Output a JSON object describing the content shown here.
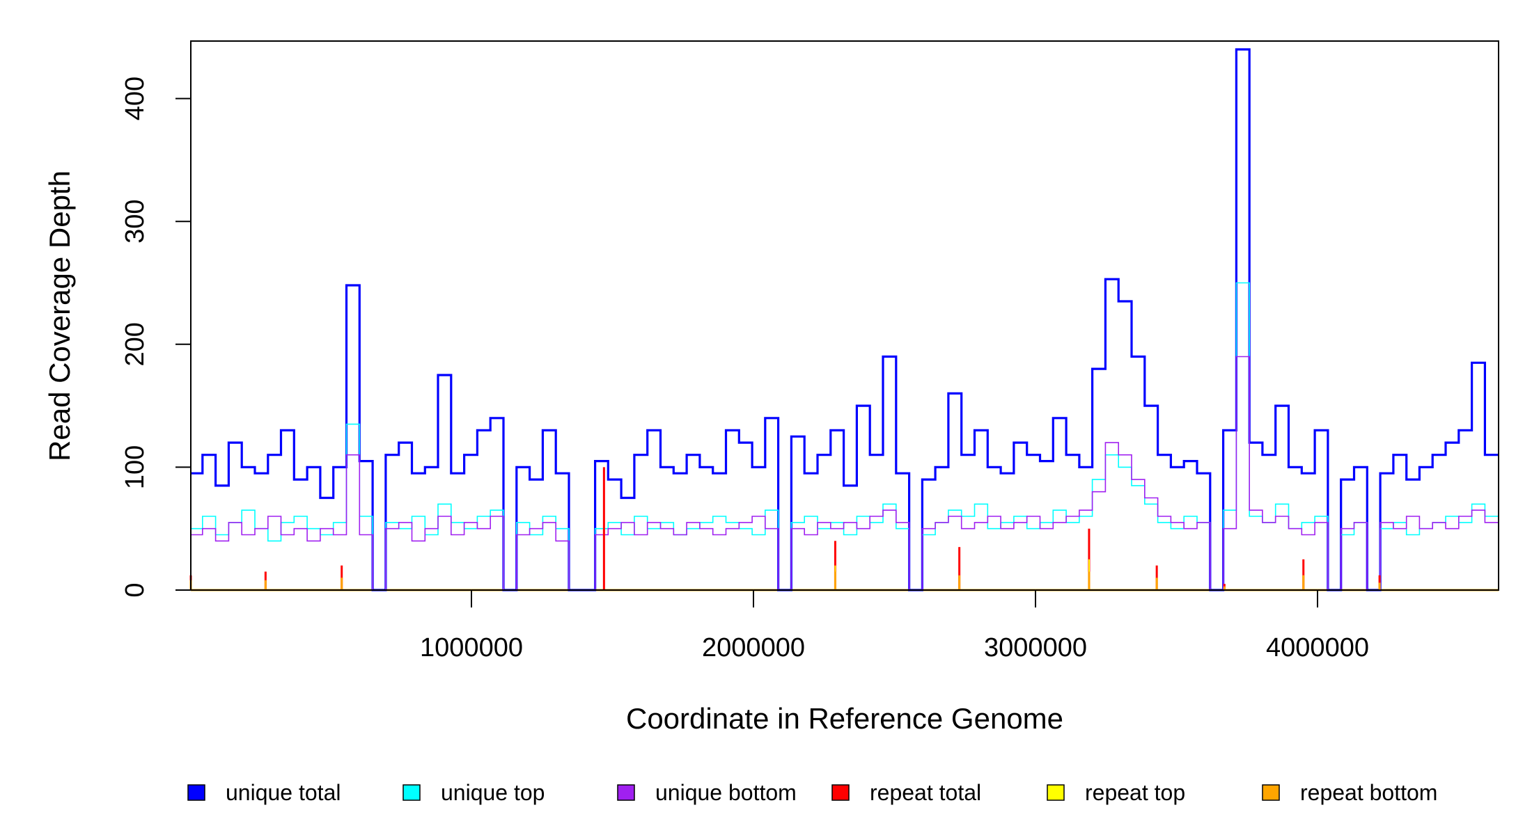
{
  "chart_data": {
    "type": "line",
    "title": "",
    "xlabel": "Coordinate in Reference Genome",
    "ylabel": "Read Coverage Depth",
    "xlim": [
      0,
      4640000
    ],
    "ylim": [
      0,
      445
    ],
    "grid": false,
    "legend_placement": "bottom",
    "bin_size": 46400,
    "x_ticks": [
      {
        "value": 1000000,
        "label": "1000000"
      },
      {
        "value": 2000000,
        "label": "2000000"
      },
      {
        "value": 3000000,
        "label": "3000000"
      },
      {
        "value": 4000000,
        "label": "4000000"
      }
    ],
    "y_ticks": [
      {
        "value": 0,
        "label": "0"
      },
      {
        "value": 100,
        "label": "100"
      },
      {
        "value": 200,
        "label": "200"
      },
      {
        "value": 300,
        "label": "300"
      },
      {
        "value": 400,
        "label": "400"
      }
    ],
    "series": [
      {
        "name": "unique total",
        "color": "#0000ff",
        "width": 3.2,
        "values": [
          95,
          110,
          85,
          120,
          100,
          95,
          110,
          130,
          90,
          100,
          75,
          100,
          248,
          105,
          0,
          110,
          120,
          95,
          100,
          175,
          95,
          110,
          130,
          140,
          0,
          100,
          90,
          130,
          95,
          0,
          0,
          105,
          90,
          75,
          110,
          130,
          100,
          95,
          110,
          100,
          95,
          130,
          120,
          100,
          140,
          0,
          125,
          95,
          110,
          130,
          85,
          150,
          110,
          190,
          95,
          0,
          90,
          100,
          160,
          110,
          130,
          100,
          95,
          120,
          110,
          105,
          140,
          110,
          100,
          180,
          253,
          235,
          190,
          150,
          110,
          100,
          105,
          95,
          0,
          130,
          440,
          120,
          110,
          150,
          100,
          95,
          130,
          0,
          90,
          100,
          0,
          95,
          110,
          90,
          100,
          110,
          120,
          130,
          185,
          110
        ]
      },
      {
        "name": "unique top",
        "color": "#00ffff",
        "width": 1.6,
        "values": [
          50,
          60,
          45,
          55,
          65,
          50,
          40,
          55,
          60,
          50,
          45,
          55,
          135,
          60,
          0,
          55,
          50,
          60,
          45,
          70,
          55,
          50,
          60,
          65,
          0,
          55,
          45,
          60,
          50,
          0,
          0,
          50,
          55,
          45,
          60,
          50,
          55,
          45,
          50,
          55,
          60,
          55,
          50,
          45,
          65,
          0,
          55,
          60,
          50,
          55,
          45,
          60,
          55,
          70,
          50,
          0,
          45,
          55,
          65,
          60,
          70,
          50,
          55,
          60,
          50,
          55,
          65,
          55,
          60,
          90,
          110,
          100,
          85,
          70,
          55,
          50,
          60,
          55,
          0,
          65,
          250,
          60,
          55,
          70,
          50,
          55,
          60,
          0,
          45,
          55,
          0,
          50,
          55,
          45,
          50,
          55,
          60,
          55,
          70,
          60
        ]
      },
      {
        "name": "unique bottom",
        "color": "#a020f0",
        "width": 1.6,
        "values": [
          45,
          50,
          40,
          55,
          45,
          50,
          60,
          45,
          50,
          40,
          50,
          45,
          110,
          45,
          0,
          50,
          55,
          40,
          50,
          60,
          45,
          55,
          50,
          60,
          0,
          45,
          50,
          55,
          40,
          0,
          0,
          45,
          50,
          55,
          45,
          55,
          50,
          45,
          55,
          50,
          45,
          50,
          55,
          60,
          50,
          0,
          50,
          45,
          55,
          50,
          55,
          50,
          60,
          65,
          55,
          0,
          50,
          55,
          60,
          50,
          55,
          60,
          50,
          55,
          60,
          50,
          55,
          60,
          65,
          80,
          120,
          110,
          90,
          75,
          60,
          55,
          50,
          55,
          0,
          50,
          190,
          65,
          55,
          60,
          50,
          45,
          55,
          0,
          50,
          55,
          0,
          55,
          50,
          60,
          50,
          55,
          50,
          60,
          65,
          55
        ]
      },
      {
        "name": "repeat total",
        "color": "#ff0000",
        "width": 3,
        "spikes": [
          [
            5000,
            12
          ],
          [
            270000,
            15
          ],
          [
            540000,
            20
          ],
          [
            1470000,
            100
          ],
          [
            2290000,
            40
          ],
          [
            2730000,
            35
          ],
          [
            3190000,
            50
          ],
          [
            3430000,
            20
          ],
          [
            3670000,
            5
          ],
          [
            3950000,
            25
          ],
          [
            4220000,
            12
          ]
        ]
      },
      {
        "name": "repeat top",
        "color": "#ffff00",
        "width": 2,
        "spikes": [
          [
            5000,
            6
          ],
          [
            540000,
            10
          ],
          [
            2290000,
            20
          ],
          [
            3190000,
            25
          ],
          [
            3950000,
            12
          ]
        ]
      },
      {
        "name": "repeat bottom",
        "color": "#ffa500",
        "width": 3,
        "spikes": [
          [
            5000,
            8
          ],
          [
            270000,
            8
          ],
          [
            540000,
            10
          ],
          [
            2290000,
            15
          ],
          [
            2730000,
            12
          ],
          [
            3190000,
            15
          ],
          [
            3430000,
            10
          ],
          [
            3670000,
            3
          ],
          [
            3950000,
            12
          ],
          [
            4220000,
            6
          ]
        ]
      }
    ]
  }
}
